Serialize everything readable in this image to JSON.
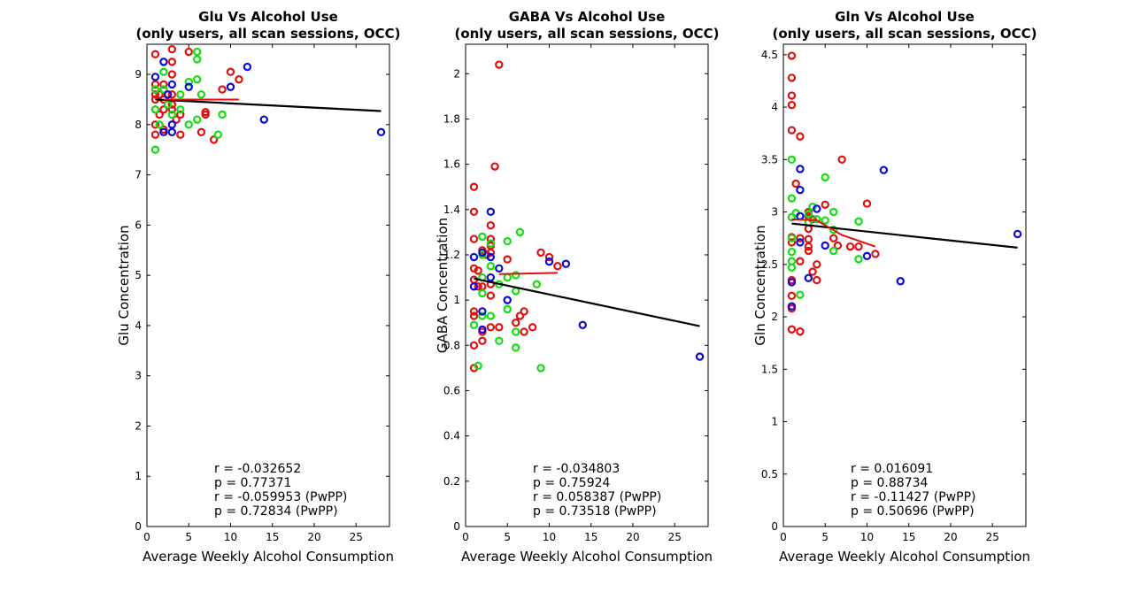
{
  "colors": {
    "red": "#e01010",
    "green": "#10e010",
    "blue": "#0a0ad8",
    "fit": "#000000",
    "subfit": "#e01010"
  },
  "chart_data": [
    {
      "type": "scatter",
      "title": "Glu Vs Alcohol Use",
      "subtitle": "(only users, all scan sessions, OCC)",
      "xlabel": "Average Weekly Alcohol Consumption",
      "ylabel": "Glu Concentration",
      "xlim": [
        0,
        29
      ],
      "ylim": [
        0,
        9.6
      ],
      "xticks": [
        0,
        5,
        10,
        15,
        20,
        25
      ],
      "yticks": [
        0,
        1,
        2,
        3,
        4,
        5,
        6,
        7,
        8,
        9
      ],
      "ytick_labels": [
        "0",
        "1",
        "2",
        "3",
        "4",
        "5",
        "6",
        "7",
        "8",
        "9"
      ],
      "stats": [
        "r = -0.032652",
        "p = 0.77371",
        "r = -0.059953 (PwPP)",
        "p = 0.72834 (PwPP)"
      ],
      "fit_line": [
        [
          1,
          8.5
        ],
        [
          28,
          8.27
        ]
      ],
      "sub_fit_line": [
        [
          2,
          8.5
        ],
        [
          11,
          8.5
        ]
      ],
      "series": [
        {
          "color": "red",
          "points": [
            [
              1,
              9.4
            ],
            [
              1,
              8.8
            ],
            [
              1,
              8.7
            ],
            [
              1,
              8.6
            ],
            [
              1,
              8.5
            ],
            [
              1,
              8.3
            ],
            [
              1,
              8.0
            ],
            [
              1,
              7.8
            ],
            [
              1.5,
              8.6
            ],
            [
              1.5,
              8.2
            ],
            [
              2,
              8.8
            ],
            [
              2,
              8.7
            ],
            [
              2,
              8.5
            ],
            [
              2,
              8.3
            ],
            [
              2,
              7.9
            ],
            [
              2.5,
              8.6
            ],
            [
              3,
              9.5
            ],
            [
              3,
              9.25
            ],
            [
              3,
              9.0
            ],
            [
              3,
              8.6
            ],
            [
              3,
              8.4
            ],
            [
              3,
              8.3
            ],
            [
              3.5,
              8.1
            ],
            [
              4,
              8.2
            ],
            [
              4,
              7.8
            ],
            [
              5,
              9.45
            ],
            [
              6.5,
              7.85
            ],
            [
              7,
              8.2
            ],
            [
              7,
              8.25
            ],
            [
              8,
              7.7
            ],
            [
              9,
              8.7
            ],
            [
              10,
              9.05
            ],
            [
              11,
              8.9
            ]
          ]
        },
        {
          "color": "green",
          "points": [
            [
              1,
              7.5
            ],
            [
              1,
              8.3
            ],
            [
              1,
              8.7
            ],
            [
              1.5,
              8.0
            ],
            [
              2,
              9.05
            ],
            [
              2,
              8.7
            ],
            [
              2.5,
              8.4
            ],
            [
              3,
              8.2
            ],
            [
              4,
              8.6
            ],
            [
              4,
              8.3
            ],
            [
              5,
              8.0
            ],
            [
              5,
              8.85
            ],
            [
              6,
              9.45
            ],
            [
              6,
              9.3
            ],
            [
              6,
              8.9
            ],
            [
              6,
              8.1
            ],
            [
              6.5,
              8.6
            ],
            [
              8.5,
              7.8
            ],
            [
              9,
              8.2
            ]
          ]
        },
        {
          "color": "blue",
          "points": [
            [
              1,
              8.95
            ],
            [
              2,
              9.25
            ],
            [
              2,
              7.85
            ],
            [
              2.5,
              8.6
            ],
            [
              3,
              8.8
            ],
            [
              3,
              8.0
            ],
            [
              3,
              7.85
            ],
            [
              5,
              8.75
            ],
            [
              10,
              8.75
            ],
            [
              12,
              9.15
            ],
            [
              14,
              8.1
            ],
            [
              28,
              7.85
            ]
          ]
        }
      ]
    },
    {
      "type": "scatter",
      "title": "GABA Vs Alcohol Use",
      "subtitle": "(only users, all scan sessions, OCC)",
      "xlabel": "Average Weekly Alcohol Consumption",
      "ylabel": "GABA Concentration",
      "xlim": [
        0,
        29
      ],
      "ylim": [
        0,
        2.13
      ],
      "xticks": [
        0,
        5,
        10,
        15,
        20,
        25
      ],
      "yticks": [
        0,
        0.2,
        0.4,
        0.6,
        0.8,
        1,
        1.2,
        1.4,
        1.6,
        1.8,
        2
      ],
      "ytick_labels": [
        "0",
        "0.2",
        "0.4",
        "0.6",
        "0.8",
        "1",
        "1.2",
        "1.4",
        "1.6",
        "1.8",
        "2"
      ],
      "stats": [
        "r = -0.034803",
        "p = 0.75924",
        "r = 0.058387 (PwPP)",
        "p = 0.73518 (PwPP)"
      ],
      "fit_line": [
        [
          1,
          1.095
        ],
        [
          28,
          0.885
        ]
      ],
      "sub_fit_line": [
        [
          4,
          1.115
        ],
        [
          11,
          1.12
        ]
      ],
      "series": [
        {
          "color": "red",
          "points": [
            [
              1,
              1.5
            ],
            [
              1,
              1.39
            ],
            [
              1,
              1.27
            ],
            [
              1,
              1.14
            ],
            [
              1,
              1.09
            ],
            [
              1,
              0.95
            ],
            [
              1,
              0.93
            ],
            [
              1,
              0.8
            ],
            [
              1,
              0.7
            ],
            [
              1.5,
              1.13
            ],
            [
              1.5,
              1.06
            ],
            [
              2,
              1.22
            ],
            [
              2,
              1.06
            ],
            [
              2,
              0.86
            ],
            [
              2,
              0.82
            ],
            [
              2.5,
              1.2
            ],
            [
              3,
              1.33
            ],
            [
              3,
              1.27
            ],
            [
              3,
              1.24
            ],
            [
              3,
              1.21
            ],
            [
              3,
              1.07
            ],
            [
              3,
              1.02
            ],
            [
              3,
              0.88
            ],
            [
              3.5,
              1.59
            ],
            [
              4,
              2.04
            ],
            [
              4,
              0.88
            ],
            [
              5,
              1.18
            ],
            [
              6,
              0.9
            ],
            [
              6.5,
              0.93
            ],
            [
              7,
              0.86
            ],
            [
              7,
              0.95
            ],
            [
              8,
              0.88
            ],
            [
              9,
              1.21
            ],
            [
              10,
              1.19
            ],
            [
              11,
              1.15
            ]
          ]
        },
        {
          "color": "green",
          "points": [
            [
              1,
              0.89
            ],
            [
              1.5,
              0.71
            ],
            [
              2,
              1.28
            ],
            [
              2,
              1.2
            ],
            [
              2,
              1.1
            ],
            [
              2,
              1.03
            ],
            [
              2,
              0.93
            ],
            [
              3,
              1.25
            ],
            [
              3,
              1.15
            ],
            [
              3,
              0.93
            ],
            [
              4,
              1.07
            ],
            [
              4,
              0.82
            ],
            [
              5,
              1.26
            ],
            [
              5,
              1.1
            ],
            [
              5,
              0.96
            ],
            [
              6,
              1.11
            ],
            [
              6,
              1.04
            ],
            [
              6,
              0.86
            ],
            [
              6,
              0.79
            ],
            [
              6.5,
              1.3
            ],
            [
              8.5,
              1.07
            ],
            [
              9,
              0.7
            ]
          ]
        },
        {
          "color": "blue",
          "points": [
            [
              1,
              1.19
            ],
            [
              1,
              1.06
            ],
            [
              2,
              1.21
            ],
            [
              2,
              0.95
            ],
            [
              2,
              0.87
            ],
            [
              3,
              1.39
            ],
            [
              3,
              1.19
            ],
            [
              3,
              1.1
            ],
            [
              4,
              1.14
            ],
            [
              5,
              1.0
            ],
            [
              10,
              1.17
            ],
            [
              12,
              1.16
            ],
            [
              14,
              0.89
            ],
            [
              28,
              0.75
            ]
          ]
        }
      ]
    },
    {
      "type": "scatter",
      "title": "Gln Vs Alcohol Use",
      "subtitle": "(only users, all scan sessions, OCC)",
      "xlabel": "Average Weekly Alcohol Consumption",
      "ylabel": "Gln Concentration",
      "xlim": [
        0,
        29
      ],
      "ylim": [
        0,
        4.6
      ],
      "xticks": [
        0,
        5,
        10,
        15,
        20,
        25
      ],
      "yticks": [
        0,
        0.5,
        1,
        1.5,
        2,
        2.5,
        3,
        3.5,
        4,
        4.5
      ],
      "ytick_labels": [
        "0",
        "0.5",
        "1",
        "1.5",
        "2",
        "2.5",
        "3",
        "3.5",
        "4",
        "4.5"
      ],
      "stats": [
        "r = 0.016091",
        "p = 0.88734",
        "r = -0.11427 (PwPP)",
        "p = 0.50696 (PwPP)"
      ],
      "fit_line": [
        [
          1,
          2.89
        ],
        [
          28,
          2.66
        ]
      ],
      "sub_fit_line": [
        [
          1,
          2.93
        ],
        [
          4,
          2.92
        ],
        [
          7,
          2.78
        ],
        [
          11,
          2.67
        ]
      ],
      "series": [
        {
          "color": "red",
          "points": [
            [
              1,
              4.49
            ],
            [
              1,
              4.28
            ],
            [
              1,
              4.11
            ],
            [
              1,
              4.02
            ],
            [
              1,
              3.78
            ],
            [
              1,
              2.76
            ],
            [
              1,
              2.71
            ],
            [
              1,
              2.35
            ],
            [
              1,
              2.2
            ],
            [
              1,
              2.08
            ],
            [
              1,
              1.88
            ],
            [
              1.5,
              3.27
            ],
            [
              2,
              3.72
            ],
            [
              2,
              2.75
            ],
            [
              2,
              2.53
            ],
            [
              2,
              1.86
            ],
            [
              3,
              3.0
            ],
            [
              3,
              2.96
            ],
            [
              3,
              2.84
            ],
            [
              3,
              2.74
            ],
            [
              3,
              2.67
            ],
            [
              3,
              2.63
            ],
            [
              3.5,
              2.93
            ],
            [
              3.5,
              2.43
            ],
            [
              4,
              2.5
            ],
            [
              4,
              2.35
            ],
            [
              5,
              3.07
            ],
            [
              6,
              2.75
            ],
            [
              6.5,
              2.68
            ],
            [
              7,
              3.5
            ],
            [
              8,
              2.67
            ],
            [
              9,
              2.67
            ],
            [
              10,
              3.08
            ],
            [
              11,
              2.6
            ]
          ]
        },
        {
          "color": "green",
          "points": [
            [
              1,
              3.5
            ],
            [
              1,
              3.13
            ],
            [
              1,
              2.95
            ],
            [
              1,
              2.75
            ],
            [
              1,
              2.62
            ],
            [
              1,
              2.53
            ],
            [
              1,
              2.47
            ],
            [
              1.5,
              2.99
            ],
            [
              2,
              2.21
            ],
            [
              3,
              2.98
            ],
            [
              3,
              2.9
            ],
            [
              3.5,
              3.05
            ],
            [
              4,
              2.93
            ],
            [
              5,
              3.33
            ],
            [
              5,
              2.92
            ],
            [
              6,
              3.0
            ],
            [
              6,
              2.83
            ],
            [
              6,
              2.63
            ],
            [
              9,
              2.91
            ],
            [
              9,
              2.55
            ]
          ]
        },
        {
          "color": "blue",
          "points": [
            [
              1,
              2.33
            ],
            [
              1,
              2.1
            ],
            [
              2,
              3.41
            ],
            [
              2,
              3.21
            ],
            [
              2,
              2.96
            ],
            [
              2,
              2.71
            ],
            [
              3,
              2.37
            ],
            [
              4,
              3.03
            ],
            [
              5,
              2.68
            ],
            [
              10,
              2.58
            ],
            [
              12,
              3.4
            ],
            [
              14,
              2.34
            ],
            [
              28,
              2.79
            ]
          ]
        }
      ]
    }
  ]
}
